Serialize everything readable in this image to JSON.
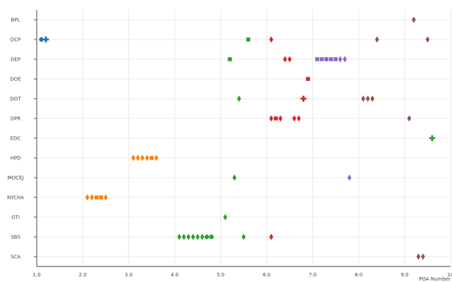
{
  "chart_data": {
    "type": "scatter",
    "title": "",
    "xlabel": "POA Number",
    "ylabel": "",
    "xlim": [
      1.0,
      10.0
    ],
    "x_ticks": [
      "1.0",
      "2.0",
      "3.0",
      "4.0",
      "5.0",
      "6.0",
      "7.0",
      "8.0",
      "9.0",
      "10"
    ],
    "grid": true,
    "legend": "none",
    "categories": [
      "BPL",
      "DCP",
      "DEP",
      "DOE",
      "DOT",
      "DPR",
      "EDC",
      "HPD",
      "MOCEJ",
      "NYCHA",
      "OTI",
      "SBS",
      "SCA"
    ],
    "colors": {
      "blue": "#1f77b4",
      "orange": "#ff7f0e",
      "green": "#2ca02c",
      "red": "#d62728",
      "purple": "#9467bd",
      "brown": "#8c564b"
    },
    "points": [
      {
        "y": "BPL",
        "x": 9.2,
        "color": "brown",
        "symbol": "diamond"
      },
      {
        "y": "DCP",
        "x": 1.1,
        "color": "blue",
        "symbol": "circle"
      },
      {
        "y": "DCP",
        "x": 1.2,
        "color": "blue",
        "symbol": "cross"
      },
      {
        "y": "DCP",
        "x": 5.6,
        "color": "green",
        "symbol": "square"
      },
      {
        "y": "DCP",
        "x": 6.1,
        "color": "red",
        "symbol": "diamond"
      },
      {
        "y": "DCP",
        "x": 8.4,
        "color": "brown",
        "symbol": "diamond"
      },
      {
        "y": "DCP",
        "x": 9.5,
        "color": "brown",
        "symbol": "diamond"
      },
      {
        "y": "DEP",
        "x": 5.2,
        "color": "green",
        "symbol": "square"
      },
      {
        "y": "DEP",
        "x": 6.4,
        "color": "red",
        "symbol": "diamond"
      },
      {
        "y": "DEP",
        "x": 6.5,
        "color": "red",
        "symbol": "diamond"
      },
      {
        "y": "DEP",
        "x": 7.1,
        "color": "purple",
        "symbol": "square"
      },
      {
        "y": "DEP",
        "x": 7.2,
        "color": "purple",
        "symbol": "square"
      },
      {
        "y": "DEP",
        "x": 7.3,
        "color": "purple",
        "symbol": "circle"
      },
      {
        "y": "DEP",
        "x": 7.4,
        "color": "purple",
        "symbol": "square"
      },
      {
        "y": "DEP",
        "x": 7.5,
        "color": "purple",
        "symbol": "square"
      },
      {
        "y": "DEP",
        "x": 7.6,
        "color": "purple",
        "symbol": "diamond"
      },
      {
        "y": "DEP",
        "x": 7.7,
        "color": "purple",
        "symbol": "diamond"
      },
      {
        "y": "DOE",
        "x": 6.9,
        "color": "red",
        "symbol": "square"
      },
      {
        "y": "DOT",
        "x": 5.4,
        "color": "green",
        "symbol": "diamond"
      },
      {
        "y": "DOT",
        "x": 6.8,
        "color": "red",
        "symbol": "cross"
      },
      {
        "y": "DOT",
        "x": 8.1,
        "color": "brown",
        "symbol": "diamond"
      },
      {
        "y": "DOT",
        "x": 8.2,
        "color": "brown",
        "symbol": "diamond"
      },
      {
        "y": "DOT",
        "x": 8.3,
        "color": "brown",
        "symbol": "diamond"
      },
      {
        "y": "DPR",
        "x": 6.1,
        "color": "red",
        "symbol": "diamond"
      },
      {
        "y": "DPR",
        "x": 6.2,
        "color": "red",
        "symbol": "square"
      },
      {
        "y": "DPR",
        "x": 6.3,
        "color": "red",
        "symbol": "diamond"
      },
      {
        "y": "DPR",
        "x": 6.6,
        "color": "red",
        "symbol": "diamond"
      },
      {
        "y": "DPR",
        "x": 6.7,
        "color": "red",
        "symbol": "diamond"
      },
      {
        "y": "DPR",
        "x": 9.1,
        "color": "brown",
        "symbol": "diamond"
      },
      {
        "y": "EDC",
        "x": 9.6,
        "color": "green",
        "symbol": "cross"
      },
      {
        "y": "HPD",
        "x": 3.1,
        "color": "orange",
        "symbol": "diamond"
      },
      {
        "y": "HPD",
        "x": 3.2,
        "color": "orange",
        "symbol": "diamond"
      },
      {
        "y": "HPD",
        "x": 3.3,
        "color": "orange",
        "symbol": "diamond"
      },
      {
        "y": "HPD",
        "x": 3.4,
        "color": "orange",
        "symbol": "diamond"
      },
      {
        "y": "HPD",
        "x": 3.5,
        "color": "orange",
        "symbol": "square"
      },
      {
        "y": "HPD",
        "x": 3.6,
        "color": "orange",
        "symbol": "diamond"
      },
      {
        "y": "MOCEJ",
        "x": 5.3,
        "color": "green",
        "symbol": "diamond"
      },
      {
        "y": "MOCEJ",
        "x": 7.8,
        "color": "purple",
        "symbol": "diamond"
      },
      {
        "y": "NYCHA",
        "x": 2.1,
        "color": "orange",
        "symbol": "diamond"
      },
      {
        "y": "NYCHA",
        "x": 2.2,
        "color": "orange",
        "symbol": "diamond"
      },
      {
        "y": "NYCHA",
        "x": 2.3,
        "color": "orange",
        "symbol": "square"
      },
      {
        "y": "NYCHA",
        "x": 2.4,
        "color": "orange",
        "symbol": "square"
      },
      {
        "y": "NYCHA",
        "x": 2.5,
        "color": "orange",
        "symbol": "diamond"
      },
      {
        "y": "OTI",
        "x": 5.1,
        "color": "green",
        "symbol": "diamond"
      },
      {
        "y": "SBS",
        "x": 4.1,
        "color": "green",
        "symbol": "diamond"
      },
      {
        "y": "SBS",
        "x": 4.2,
        "color": "green",
        "symbol": "diamond"
      },
      {
        "y": "SBS",
        "x": 4.3,
        "color": "green",
        "symbol": "diamond"
      },
      {
        "y": "SBS",
        "x": 4.4,
        "color": "green",
        "symbol": "diamond"
      },
      {
        "y": "SBS",
        "x": 4.5,
        "color": "green",
        "symbol": "diamond"
      },
      {
        "y": "SBS",
        "x": 4.6,
        "color": "green",
        "symbol": "diamond"
      },
      {
        "y": "SBS",
        "x": 4.7,
        "color": "green",
        "symbol": "circle"
      },
      {
        "y": "SBS",
        "x": 4.8,
        "color": "green",
        "symbol": "circle"
      },
      {
        "y": "SBS",
        "x": 5.5,
        "color": "green",
        "symbol": "diamond"
      },
      {
        "y": "SBS",
        "x": 6.1,
        "color": "red",
        "symbol": "diamond"
      },
      {
        "y": "SCA",
        "x": 9.3,
        "color": "brown",
        "symbol": "diamond"
      },
      {
        "y": "SCA",
        "x": 9.4,
        "color": "brown",
        "symbol": "diamond"
      }
    ]
  }
}
